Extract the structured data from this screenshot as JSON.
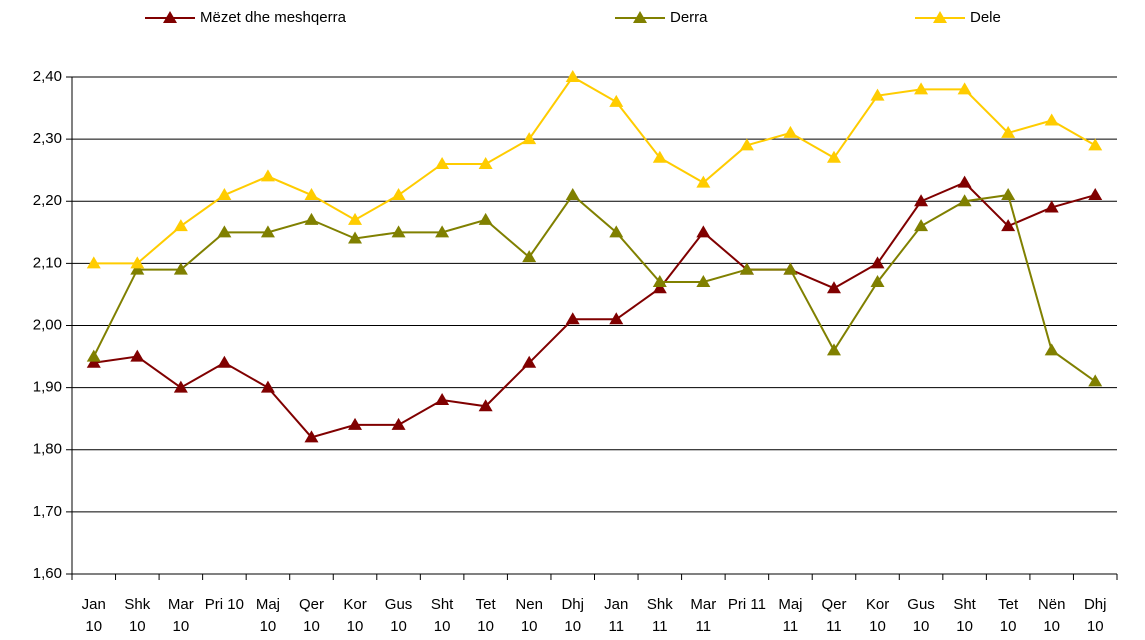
{
  "chart_data": {
    "type": "line",
    "categories": [
      "Jan 10",
      "Shk 10",
      "Mar 10",
      "Pri 10",
      "Maj 10",
      "Qer 10",
      "Kor 10",
      "Gus 10",
      "Sht 10",
      "Tet 10",
      "Nen 10",
      "Dhj 10",
      "Jan 11",
      "Shk 11",
      "Mar 11",
      "Pri 11",
      "Maj 11",
      "Qer 11",
      "Kor 10",
      "Gus 10",
      "Sht 10",
      "Tet 10",
      "Nën 10",
      "Dhj 10"
    ],
    "series": [
      {
        "name": "Mëzet dhe meshqerra",
        "color": "#800000",
        "values": [
          1.94,
          1.95,
          1.9,
          1.94,
          1.9,
          1.82,
          1.84,
          1.84,
          1.88,
          1.87,
          1.94,
          2.01,
          2.01,
          2.06,
          2.15,
          2.09,
          2.09,
          2.06,
          2.1,
          2.2,
          2.23,
          2.16,
          2.19,
          2.21
        ]
      },
      {
        "name": "Derra",
        "color": "#808000",
        "values": [
          1.95,
          2.09,
          2.09,
          2.15,
          2.15,
          2.17,
          2.14,
          2.15,
          2.15,
          2.17,
          2.11,
          2.21,
          2.15,
          2.07,
          2.07,
          2.09,
          2.09,
          1.96,
          2.07,
          2.16,
          2.2,
          2.21,
          1.96,
          1.91
        ]
      },
      {
        "name": "Dele",
        "color": "#ffcc00",
        "values": [
          2.1,
          2.1,
          2.16,
          2.21,
          2.24,
          2.21,
          2.17,
          2.21,
          2.26,
          2.26,
          2.3,
          2.4,
          2.36,
          2.27,
          2.23,
          2.29,
          2.31,
          2.27,
          2.37,
          2.38,
          2.38,
          2.31,
          2.33,
          2.29
        ]
      }
    ],
    "ylim": [
      1.6,
      2.4
    ],
    "yticks": [
      {
        "value": 1.6,
        "label": "1,60"
      },
      {
        "value": 1.7,
        "label": "1,70"
      },
      {
        "value": 1.8,
        "label": "1,80"
      },
      {
        "value": 1.9,
        "label": "1,90"
      },
      {
        "value": 2.0,
        "label": "2,00"
      },
      {
        "value": 2.1,
        "label": "2,10"
      },
      {
        "value": 2.2,
        "label": "2,20"
      },
      {
        "value": 2.3,
        "label": "2,30"
      },
      {
        "value": 2.4,
        "label": "2,40"
      }
    ],
    "grid": true,
    "legend": "top"
  }
}
